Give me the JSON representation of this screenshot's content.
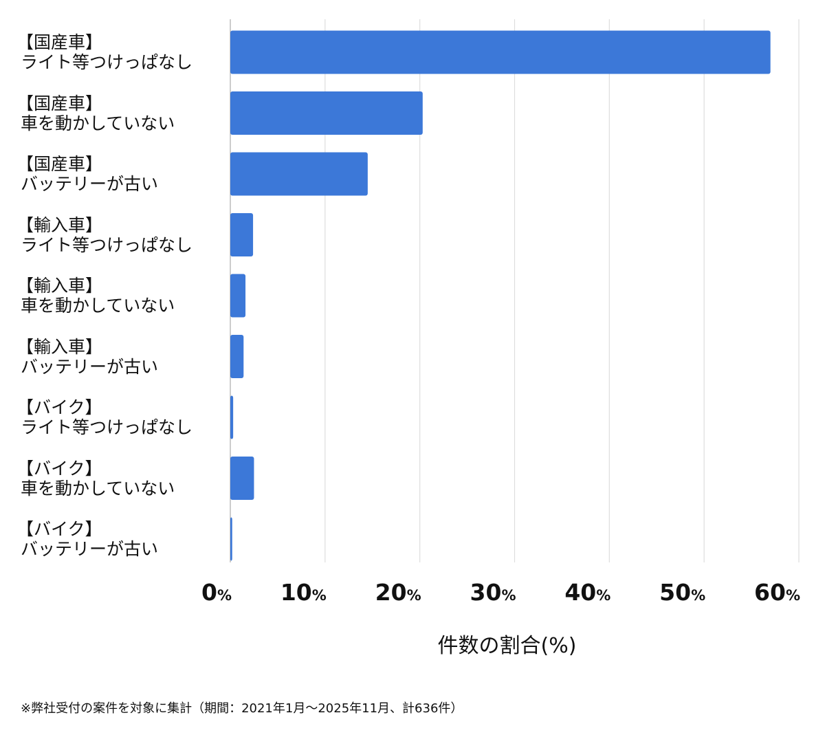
{
  "chart_data": {
    "type": "bar",
    "orientation": "horizontal",
    "categories": [
      [
        "【国産車】",
        "ライト等つけっぱなし"
      ],
      [
        "【国産車】",
        "車を動かしていない"
      ],
      [
        "【国産車】",
        "バッテリーが古い"
      ],
      [
        "【輸入車】",
        "ライト等つけっぱなし"
      ],
      [
        "【輸入車】",
        "車を動かしていない"
      ],
      [
        "【輸入車】",
        "バッテリーが古い"
      ],
      [
        "【バイク】",
        "ライト等つけっぱなし"
      ],
      [
        "【バイク】",
        "車を動かしていない"
      ],
      [
        "【バイク】",
        "バッテリーが古い"
      ]
    ],
    "values": [
      57.0,
      20.3,
      14.5,
      2.4,
      1.6,
      1.4,
      0.3,
      2.5,
      0.2
    ],
    "xlabel": "件数の割合(%)",
    "xlim": [
      0,
      60
    ],
    "ticks": [
      {
        "num": "0",
        "unit": "%"
      },
      {
        "num": "10",
        "unit": "%"
      },
      {
        "num": "20",
        "unit": "%"
      },
      {
        "num": "30",
        "unit": "%"
      },
      {
        "num": "40",
        "unit": "%"
      },
      {
        "num": "50",
        "unit": "%"
      },
      {
        "num": "60",
        "unit": "%"
      }
    ],
    "tick_values": [
      0,
      10,
      20,
      30,
      40,
      50,
      60
    ],
    "grid": true,
    "bar_color": "#3c78d8",
    "footnote": "※弊社受付の案件を対象に集計（期間：2021年1月〜2025年11月、計636件）"
  }
}
